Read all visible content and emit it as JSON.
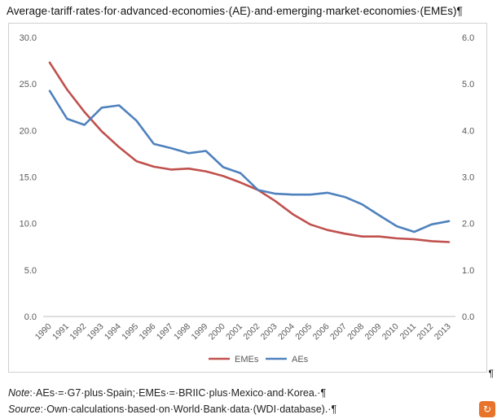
{
  "page": {
    "title": "Average·tariff·rates·for·advanced·economies·(AE)·and·emerging·market·economies·(EMEs)¶",
    "pilcrow": "¶",
    "note_label": "Note",
    "note_text": ":·AEs·=·G7·plus·Spain;·EMEs·=·BRIIC·plus·Mexico·and·Korea.·¶",
    "source_label": "Source",
    "source_text": ":·Own·calculations·based·on·World·Bank·data·(WDI·database).·¶",
    "logo_glyph": "↻"
  },
  "chart_data": {
    "type": "line",
    "title": "",
    "categories": [
      "1990",
      "1991",
      "1992",
      "1993",
      "1994",
      "1995",
      "1996",
      "1997",
      "1998",
      "1999",
      "2000",
      "2001",
      "2002",
      "2003",
      "2004",
      "2005",
      "2006",
      "2007",
      "2008",
      "2009",
      "2010",
      "2011",
      "2012",
      "2013"
    ],
    "series": [
      {
        "name": "EMEs",
        "axis": "left",
        "color": "#c0504d",
        "values": [
          27.3,
          24.4,
          22.0,
          19.9,
          18.2,
          16.7,
          16.1,
          15.8,
          15.9,
          15.6,
          15.1,
          14.4,
          13.6,
          12.4,
          11.0,
          9.9,
          9.3,
          8.9,
          8.6,
          8.6,
          8.4,
          8.3,
          8.1,
          8.0
        ]
      },
      {
        "name": "AEs",
        "axis": "right",
        "color": "#4f81bd",
        "values": [
          4.85,
          4.25,
          4.12,
          4.49,
          4.54,
          4.21,
          3.71,
          3.62,
          3.51,
          3.56,
          3.21,
          3.08,
          2.72,
          2.64,
          2.62,
          2.62,
          2.66,
          2.57,
          2.41,
          2.17,
          1.94,
          1.82,
          1.98,
          2.05
        ]
      }
    ],
    "y_left": {
      "min": 0,
      "max": 30,
      "ticks": [
        "0.0",
        "5.0",
        "10.0",
        "15.0",
        "20.0",
        "25.0",
        "30.0"
      ]
    },
    "y_right": {
      "min": 0,
      "max": 6,
      "ticks": [
        "0.0",
        "1.0",
        "2.0",
        "3.0",
        "4.0",
        "5.0",
        "6.0"
      ]
    },
    "grid": false,
    "legend_position": "bottom-center"
  }
}
